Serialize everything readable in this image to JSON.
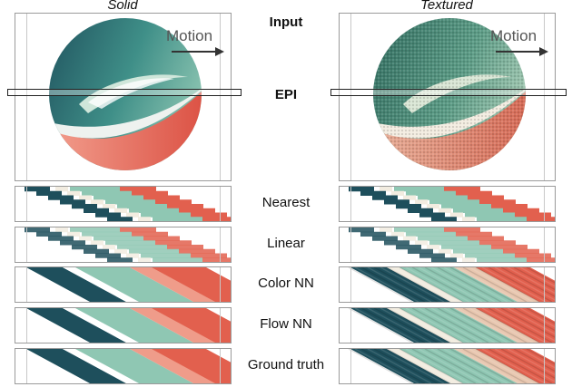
{
  "columns": {
    "left_title": "Solid",
    "right_title": "Textured"
  },
  "labels": {
    "input": "Input",
    "epi": "EPI",
    "motion_left": "Motion",
    "motion_right": "Motion"
  },
  "rows": [
    {
      "label": "Nearest"
    },
    {
      "label": "Linear"
    },
    {
      "label": "Color NN"
    },
    {
      "label": "Flow NN"
    },
    {
      "label": "Ground truth"
    }
  ],
  "colors": {
    "teal_dark": "#1e4f5c",
    "teal_light": "#8fc7b3",
    "red": "#e2604e",
    "cream": "#f2ece0"
  }
}
